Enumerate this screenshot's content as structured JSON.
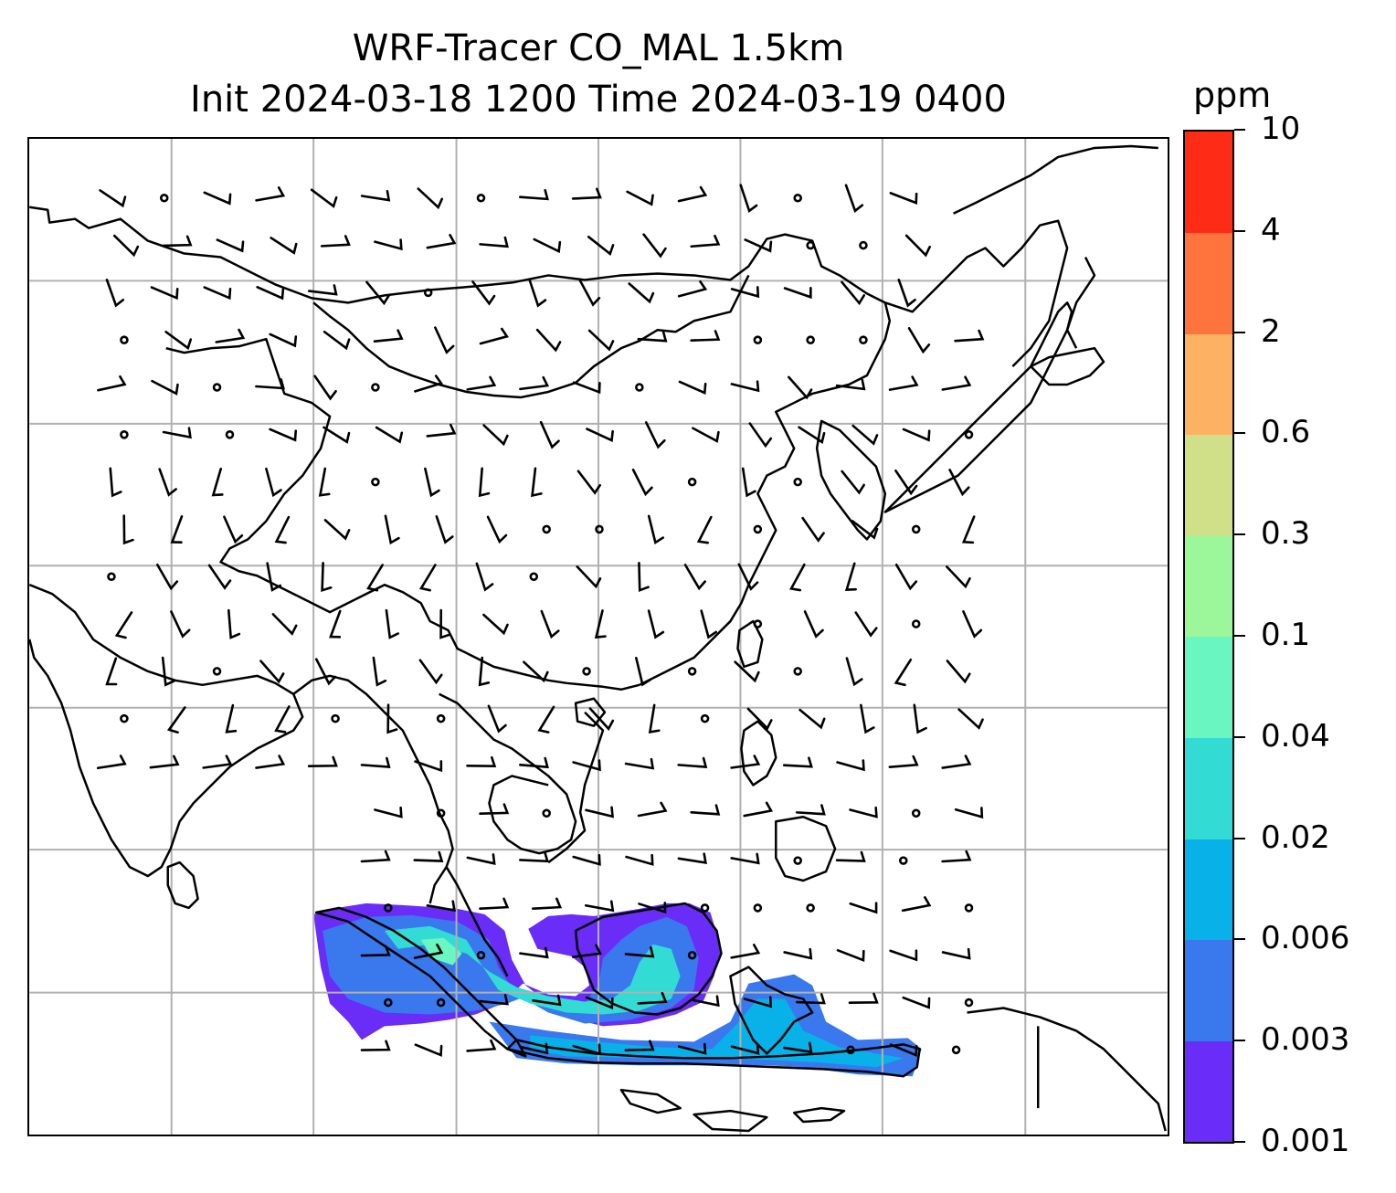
{
  "title": {
    "line1": "WRF-Tracer CO_MAL 1.5km",
    "line2": "Init 2024-03-18 1200 Time 2024-03-19 0400"
  },
  "colorbar": {
    "unit": "ppm",
    "levels": [
      "0.001",
      "0.003",
      "0.006",
      "0.02",
      "0.04",
      "0.1",
      "0.3",
      "0.6",
      "2",
      "4",
      "10"
    ],
    "colors": [
      "#6a2cf7",
      "#3a78ee",
      "#08b2e8",
      "#32dcd4",
      "#6af6c0",
      "#9cf69a",
      "#d0e088",
      "#fcb262",
      "#fe743c",
      "#fe2c16"
    ]
  },
  "map": {
    "gridlines": true,
    "coastline_color": "#000000",
    "grid_color": "#b0b0b0",
    "wind_barb_color": "#000000",
    "calm_marker": "circle"
  }
}
